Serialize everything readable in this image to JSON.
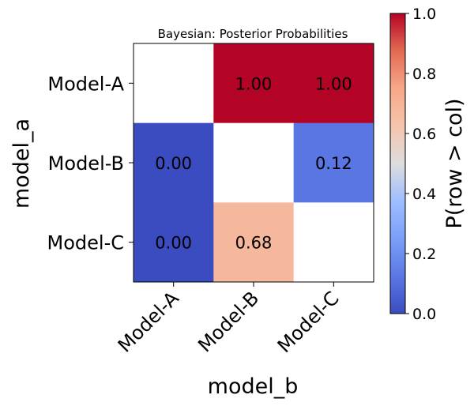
{
  "chart_data": {
    "type": "heatmap",
    "title": "Bayesian: Posterior Probabilities",
    "xlabel": "model_b",
    "ylabel": "model_a",
    "rows": [
      "Model-A",
      "Model-B",
      "Model-C"
    ],
    "cols": [
      "Model-A",
      "Model-B",
      "Model-C"
    ],
    "values": [
      [
        null,
        1.0,
        1.0
      ],
      [
        0.0,
        null,
        0.12
      ],
      [
        0.0,
        0.68,
        null
      ]
    ],
    "cell_labels": [
      [
        "",
        "1.00",
        "1.00"
      ],
      [
        "0.00",
        "",
        "0.12"
      ],
      [
        "0.00",
        "0.68",
        ""
      ]
    ],
    "colormap": "coolwarm",
    "colorbar": {
      "label": "P(row > col)",
      "range": [
        0.0,
        1.0
      ],
      "ticks": [
        "0.0",
        "0.2",
        "0.4",
        "0.6",
        "0.8",
        "1.0"
      ]
    },
    "colors": {
      "low": "#3b4cc0",
      "mid": "#dddddd",
      "high": "#b40426",
      "missing": "#ffffff"
    }
  }
}
